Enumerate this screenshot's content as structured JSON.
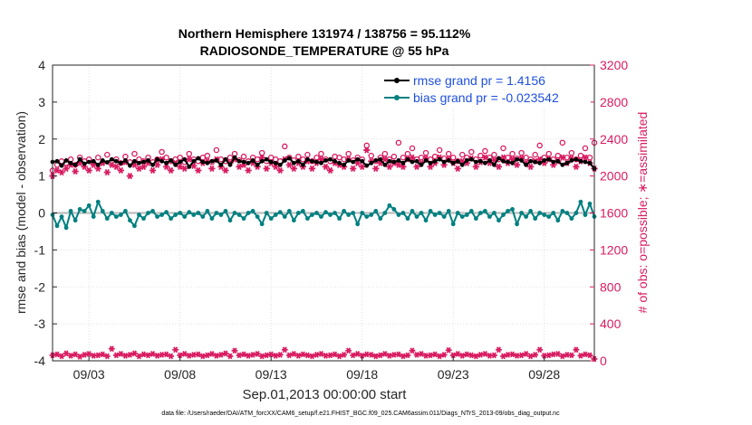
{
  "chart_data": {
    "type": "line",
    "title": "Northern Hemisphere 131974 / 138756 = 95.112%",
    "subtitle": "RADIOSONDE_TEMPERATURE @ 55 hPa",
    "xlabel": "Sep.01,2013 00:00:00 start",
    "ylabel": "rmse and bias (model - observation)",
    "y2label": "# of obs: o=possible; ∗=assimilated",
    "footer": "data file: /Users/raeder/DAI/ATM_forcXX/CAM6_setup/f.e21.FHIST_BGC.f09_025.CAM6assim.011/Diags_NTrS_2013-09/obs_diag_output.nc",
    "x_tick_labels": [
      "09/03",
      "09/08",
      "09/13",
      "09/18",
      "09/23",
      "09/28"
    ],
    "x_ticks_day": [
      3,
      8,
      13,
      18,
      23,
      28
    ],
    "xlim_day": [
      1.0,
      30.75
    ],
    "y_tick_labels": [
      "4",
      "3",
      "2",
      "1",
      "0",
      "-1",
      "-2",
      "-3",
      "-4"
    ],
    "ylim": [
      -4,
      4
    ],
    "y2_tick_labels": [
      "3200",
      "2800",
      "2400",
      "2000",
      "1600",
      "1200",
      "800",
      "400",
      "0"
    ],
    "y2lim": [
      0,
      3200
    ],
    "grid": true,
    "legend_placement": "top-right",
    "colors": {
      "rmse": "#000000",
      "bias": "#008080",
      "obs": "#d81b60",
      "zero_line": "#bdbdbd",
      "legend_text": "#1f4fe0"
    },
    "series": [
      {
        "name": "rmse grand pr = 1.4156",
        "key": "rmse",
        "values": [
          1.38,
          1.4,
          1.28,
          1.42,
          1.35,
          1.3,
          1.45,
          1.33,
          1.38,
          1.4,
          1.3,
          1.42,
          1.37,
          1.45,
          1.4,
          1.35,
          1.42,
          1.28,
          1.4,
          1.35,
          1.38,
          1.42,
          1.3,
          1.45,
          1.4,
          1.35,
          1.42,
          1.3,
          1.38,
          1.45,
          1.25,
          1.4,
          1.48,
          1.38,
          1.35,
          1.4,
          1.42,
          1.3,
          1.45,
          1.3,
          1.5,
          1.4,
          1.38,
          1.35,
          1.42,
          1.3,
          1.4,
          1.45,
          1.38,
          1.35,
          1.3,
          1.42,
          1.48,
          1.35,
          1.4,
          1.3,
          1.45,
          1.4,
          1.38,
          1.35,
          1.42,
          1.45,
          1.4,
          1.35,
          1.3,
          1.42,
          1.38,
          1.45,
          1.4,
          1.28,
          1.35,
          1.42,
          1.45,
          1.3,
          1.4,
          1.38,
          1.42,
          1.35,
          1.45,
          1.38,
          1.4,
          1.3,
          1.42,
          1.35,
          1.4,
          1.45,
          1.38,
          1.42,
          1.35,
          1.4,
          1.3,
          1.42,
          1.45,
          1.38,
          1.4,
          1.35,
          1.42,
          1.3,
          1.48,
          1.4,
          1.38,
          1.35,
          1.45,
          1.42,
          1.3,
          1.4,
          1.38,
          1.35,
          1.42,
          1.45,
          1.38,
          1.4,
          1.3,
          1.35,
          1.42,
          1.45,
          1.4,
          1.38,
          1.35,
          1.2
        ]
      },
      {
        "name": "bias grand pr = -0.023542",
        "key": "bias",
        "values": [
          -0.05,
          -0.35,
          -0.1,
          -0.4,
          0.05,
          -0.2,
          0.1,
          0.05,
          0.2,
          -0.1,
          0.3,
          0.05,
          -0.15,
          0.0,
          -0.1,
          -0.05,
          0.05,
          -0.2,
          -0.35,
          -0.05,
          -0.15,
          0.0,
          0.05,
          -0.1,
          -0.05,
          0.02,
          -0.15,
          -0.05,
          0.0,
          -0.1,
          0.02,
          -0.05,
          0.0,
          -0.1,
          0.05,
          -0.15,
          0.0,
          -0.05,
          0.05,
          -0.2,
          0.0,
          -0.05,
          -0.15,
          0.0,
          0.05,
          -0.1,
          -0.3,
          0.0,
          -0.15,
          -0.05,
          0.02,
          -0.1,
          0.05,
          -0.2,
          0.0,
          0.05,
          -0.15,
          -0.05,
          0.0,
          -0.1,
          0.02,
          -0.05,
          0.0,
          -0.15,
          0.05,
          -0.05,
          0.0,
          -0.3,
          0.0,
          -0.1,
          -0.05,
          0.05,
          -0.15,
          0.0,
          0.2,
          0.1,
          -0.05,
          0.0,
          -0.15,
          0.05,
          -0.1,
          0.0,
          -0.2,
          0.05,
          -0.05,
          0.0,
          -0.1,
          0.05,
          -0.3,
          0.0,
          -0.1,
          -0.05,
          0.05,
          -0.15,
          0.0,
          0.05,
          -0.1,
          0.0,
          -0.2,
          -0.05,
          0.05,
          0.1,
          -0.3,
          0.0,
          -0.1,
          0.05,
          -0.15,
          0.0,
          -0.05,
          -0.1,
          0.0,
          -0.2,
          0.05,
          0.0,
          -0.15,
          0.0,
          0.3,
          -0.05,
          0.25,
          -0.1
        ]
      },
      {
        "name": "possible",
        "key": "obs_possible",
        "values": [
          2060,
          2120,
          2160,
          2140,
          2180,
          2120,
          2200,
          2160,
          2180,
          2140,
          2200,
          2150,
          2230,
          2160,
          2180,
          2140,
          2210,
          2150,
          2240,
          2180,
          2160,
          2200,
          2150,
          2180,
          2260,
          2200,
          2160,
          2180,
          2200,
          2150,
          2240,
          2180,
          2160,
          2200,
          2220,
          2150,
          2280,
          2180,
          2160,
          2200,
          2240,
          2170,
          2210,
          2160,
          2200,
          2180,
          2250,
          2160,
          2200,
          2180,
          2160,
          2320,
          2200,
          2170,
          2210,
          2180,
          2230,
          2160,
          2200,
          2240,
          2180,
          2160,
          2210,
          2200,
          2180,
          2240,
          2170,
          2200,
          2180,
          2330,
          2220,
          2160,
          2200,
          2240,
          2180,
          2210,
          2360,
          2200,
          2240,
          2300,
          2180,
          2200,
          2250,
          2180,
          2210,
          2280,
          2190,
          2240,
          2200,
          2160,
          2230,
          2200,
          2260,
          2180,
          2220,
          2270,
          2200,
          2230,
          2180,
          2300,
          2200,
          2240,
          2190,
          2250,
          2200,
          2180,
          2230,
          2330,
          2200,
          2240,
          2180,
          2220,
          2360,
          2200,
          2250,
          2180,
          2220,
          2300,
          2200,
          2360
        ]
      },
      {
        "name": "assimilated",
        "key": "obs_assimilated",
        "values": [
          2000,
          2060,
          2040,
          2080,
          2120,
          2050,
          2140,
          2100,
          2060,
          2120,
          2080,
          2140,
          2040,
          2120,
          2100,
          2060,
          2150,
          2000,
          2120,
          2080,
          2100,
          2140,
          2060,
          2120,
          2180,
          2100,
          2060,
          2140,
          2100,
          2080,
          2180,
          2110,
          2060,
          2140,
          2160,
          2080,
          2180,
          2100,
          2060,
          2140,
          2180,
          2100,
          2120,
          2060,
          2140,
          2100,
          2200,
          2080,
          2140,
          2100,
          2060,
          2180,
          2120,
          2080,
          2140,
          2100,
          2160,
          2080,
          2140,
          2180,
          2100,
          2060,
          2140,
          2120,
          2100,
          2180,
          2080,
          2140,
          2100,
          2280,
          2160,
          2080,
          2140,
          2180,
          2100,
          2140,
          2120,
          2100,
          2180,
          2200,
          2100,
          2140,
          2190,
          2100,
          2140,
          2200,
          2120,
          2180,
          2140,
          2080,
          2160,
          2140,
          2190,
          2100,
          2150,
          2200,
          2140,
          2170,
          2100,
          2200,
          2140,
          2180,
          2120,
          2190,
          2140,
          2100,
          2160,
          2180,
          2140,
          2180,
          2120,
          2160,
          2200,
          2140,
          2190,
          2100,
          2160,
          2200,
          2140,
          2080
        ]
      },
      {
        "name": "assimilated",
        "key": "obs_low",
        "values": [
          60,
          70,
          50,
          80,
          55,
          70,
          45,
          65,
          75,
          55,
          60,
          70,
          50,
          130,
          60,
          75,
          55,
          65,
          80,
          50,
          70,
          60,
          75,
          55,
          65,
          70,
          50,
          120,
          60,
          75,
          55,
          65,
          70,
          50,
          60,
          75,
          55,
          65,
          80,
          50,
          110,
          60,
          70,
          55,
          65,
          75,
          50,
          60,
          70,
          55,
          65,
          120,
          60,
          75,
          55,
          70,
          60,
          50,
          65,
          75,
          55,
          60,
          70,
          50,
          65,
          110,
          60,
          75,
          55,
          70,
          65,
          50,
          60,
          75,
          55,
          65,
          70,
          50,
          60,
          110,
          65,
          75,
          55,
          60,
          70,
          50,
          65,
          115,
          60,
          75,
          55,
          70,
          60,
          50,
          65,
          75,
          55,
          60,
          120,
          50,
          65,
          70,
          55,
          60,
          75,
          50,
          65,
          120,
          55,
          60,
          70,
          75,
          50,
          65,
          60,
          120,
          55,
          70,
          60,
          20
        ]
      }
    ]
  }
}
